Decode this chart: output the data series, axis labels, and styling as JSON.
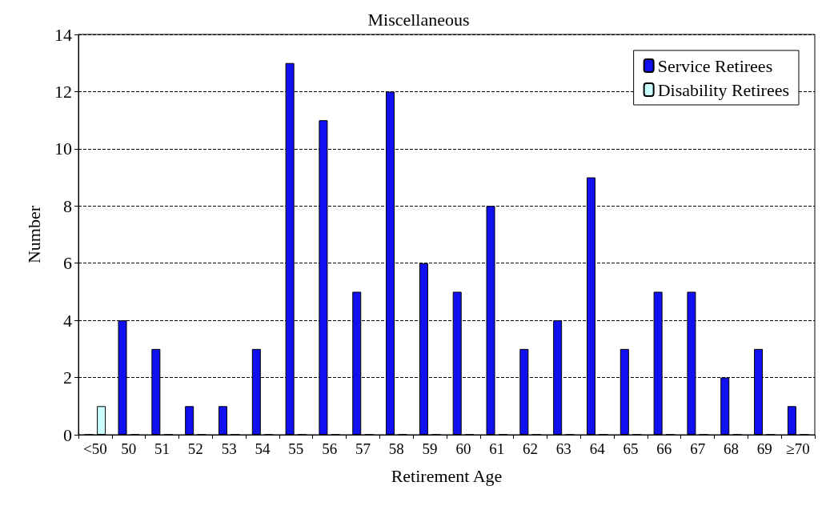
{
  "chart_data": {
    "type": "bar",
    "title": "Miscellaneous",
    "xlabel": "Retirement Age",
    "ylabel": "Number",
    "categories": [
      "<50",
      "50",
      "51",
      "52",
      "53",
      "54",
      "55",
      "56",
      "57",
      "58",
      "59",
      "60",
      "61",
      "62",
      "63",
      "64",
      "65",
      "66",
      "67",
      "68",
      "69",
      "≥70"
    ],
    "series": [
      {
        "name": "Service Retirees",
        "color": "#1010f0",
        "values": [
          0,
          4,
          3,
          1,
          1,
          3,
          13,
          11,
          5,
          12,
          6,
          5,
          8,
          3,
          4,
          9,
          3,
          5,
          5,
          2,
          3,
          1
        ]
      },
      {
        "name": "Disability Retirees",
        "color": "#ccffff",
        "values": [
          1,
          0,
          0,
          0,
          0,
          0,
          0,
          0,
          0,
          0,
          0,
          0,
          0,
          0,
          0,
          0,
          0,
          0,
          0,
          0,
          0,
          0
        ]
      }
    ],
    "ylim": [
      0,
      14
    ],
    "yticks": [
      0,
      2,
      4,
      6,
      8,
      10,
      12,
      14
    ],
    "grid": "y",
    "legend": "top right"
  }
}
